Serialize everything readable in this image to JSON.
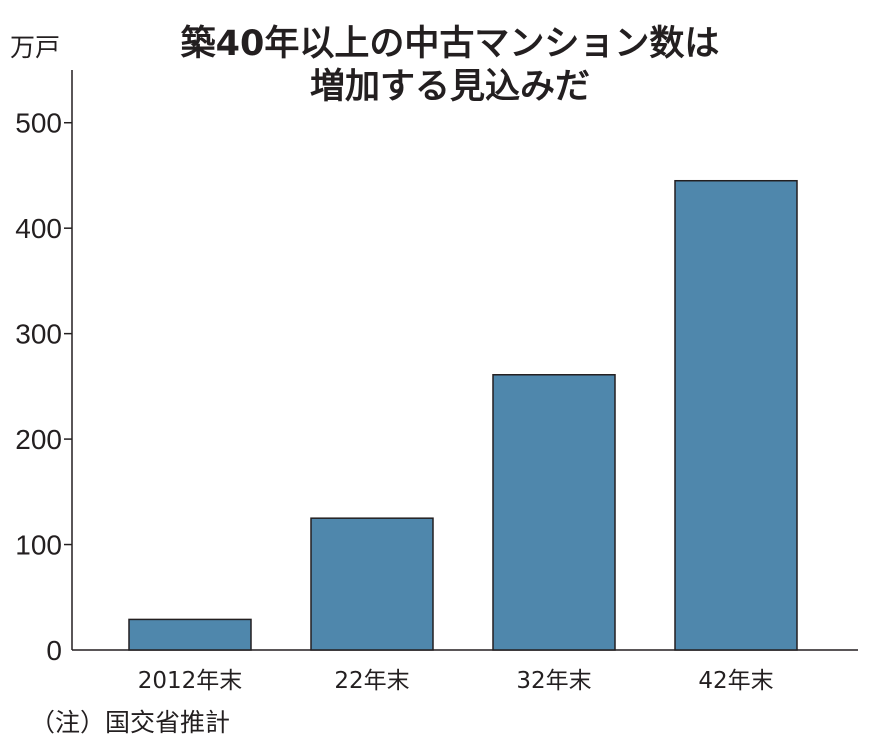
{
  "chart_data": {
    "type": "bar",
    "title_lines": [
      "築40年以上の中古マンション数は",
      "増加する見込みだ"
    ],
    "unit": "万戸",
    "categories": [
      "2012年末",
      "22年末",
      "32年末",
      "42年末"
    ],
    "values": [
      29,
      125,
      261,
      445
    ],
    "ylim": [
      0,
      550
    ],
    "yticks": [
      0,
      100,
      200,
      300,
      400,
      500
    ],
    "grid": false,
    "legend": "none",
    "source": "（注）国交省推計",
    "colors": {
      "bar": "#4f87ac",
      "bar_stroke": "#231f20",
      "axis": "#231f20",
      "text": "#231f20"
    }
  }
}
